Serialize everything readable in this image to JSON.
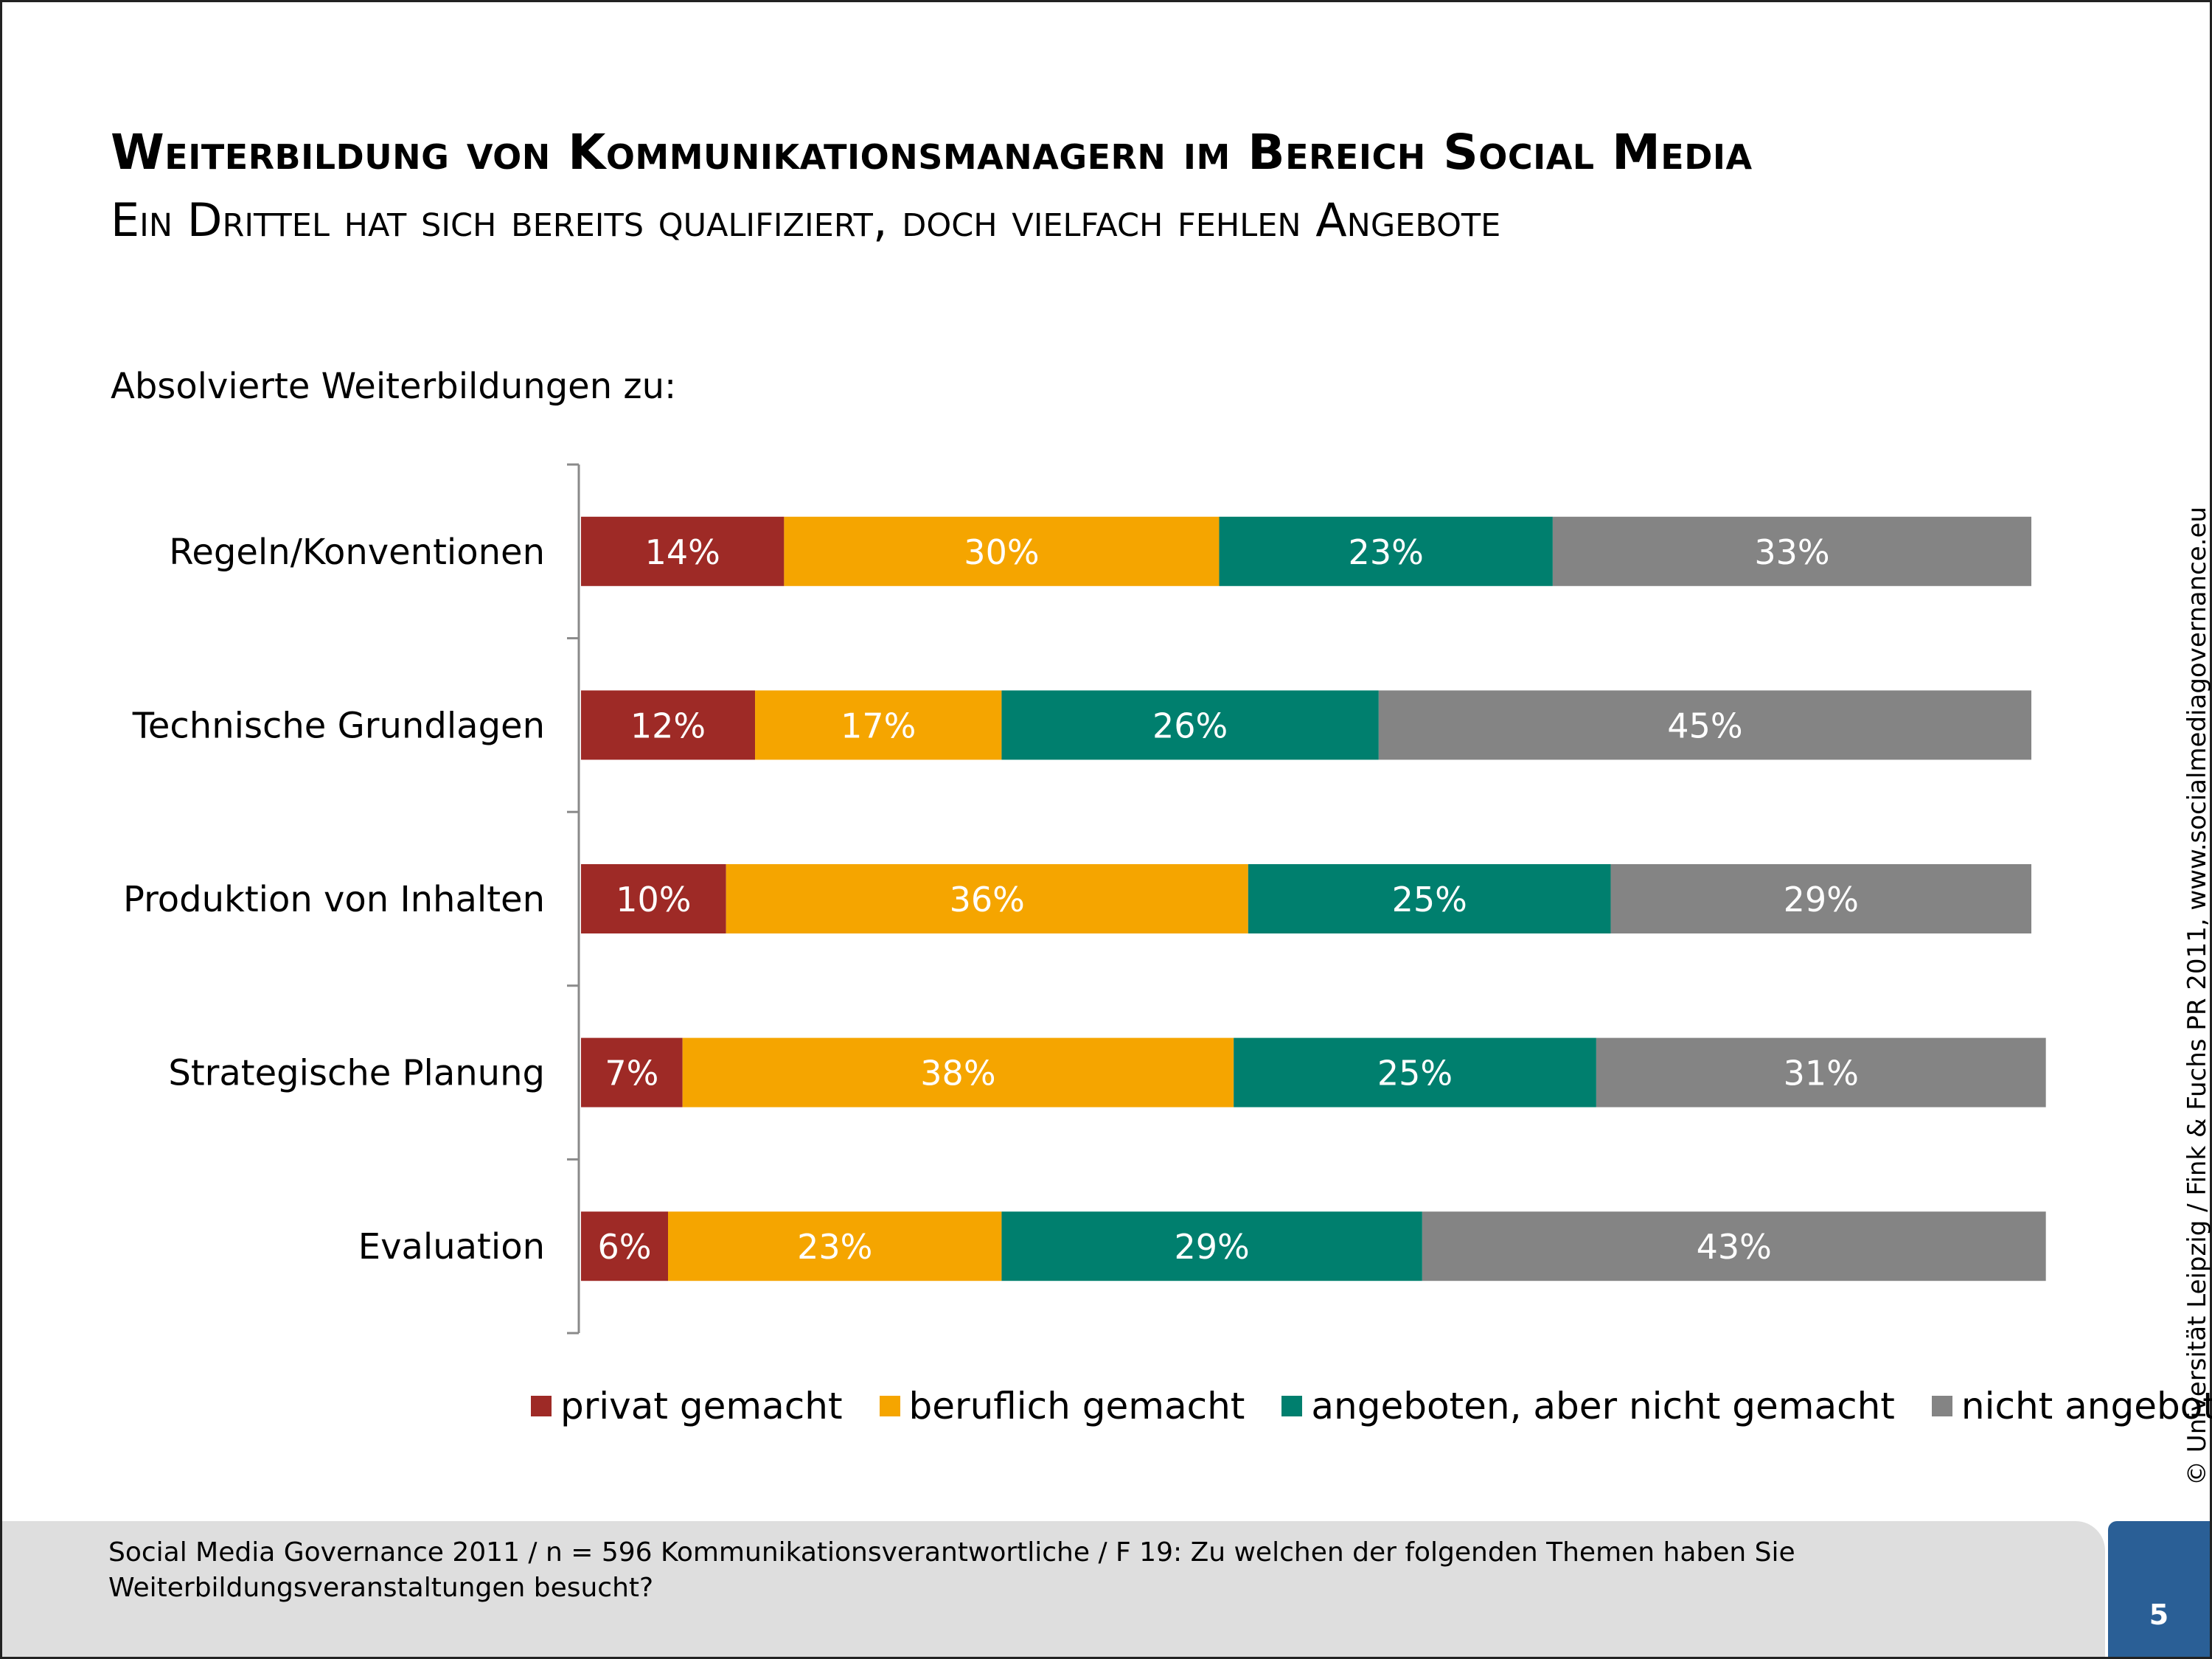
{
  "header": {
    "title": "Weiterbildung von Kommunikationsmanagern im Bereich Social Media",
    "subtitle": "Ein Drittel hat sich bereits qualifiziert, doch vielfach fehlen Angebote",
    "intro": "Absolvierte Weiterbildungen zu:"
  },
  "chart_data": {
    "type": "bar",
    "orientation": "horizontal",
    "stacked": true,
    "categories": [
      "Regeln/Konventionen",
      "Technische Grundlagen",
      "Produktion von Inhalten",
      "Strategische Planung",
      "Evaluation"
    ],
    "series": [
      {
        "name": "privat gemacht",
        "color": "#9e2a26",
        "values": [
          14,
          12,
          10,
          7,
          6
        ],
        "labels": [
          "14%",
          "12%",
          "10%",
          "7%",
          "6%"
        ]
      },
      {
        "name": "beruflich gemacht",
        "color": "#f5a500",
        "values": [
          30,
          17,
          36,
          38,
          23
        ],
        "labels": [
          "30%",
          "17%",
          "36%",
          "38%",
          "23%"
        ]
      },
      {
        "name": "angeboten, aber nicht gemacht",
        "color": "#007f6e",
        "values": [
          23,
          26,
          25,
          25,
          29
        ],
        "labels": [
          "23%",
          "26%",
          "25%",
          "25%",
          "29%"
        ]
      },
      {
        "name": "nicht angeboten",
        "color": "#848484",
        "values": [
          33,
          45,
          29,
          31,
          43
        ],
        "labels": [
          "33%",
          "45%",
          "29%",
          "31%",
          "43%"
        ]
      }
    ],
    "xlim": [
      0,
      100
    ],
    "legend_position": "bottom",
    "grid": false
  },
  "side_note": "© Universität Leipzig / Fink & Fuchs PR 2011, www.socialmediagovernance.eu",
  "footer": {
    "source": "Social Media Governance 2011 / n = 596 Kommunikationsverantwortliche / F 19: Zu welchen der folgenden Themen haben Sie Weiterbildungsveranstaltungen besucht?",
    "page_number": "5"
  }
}
